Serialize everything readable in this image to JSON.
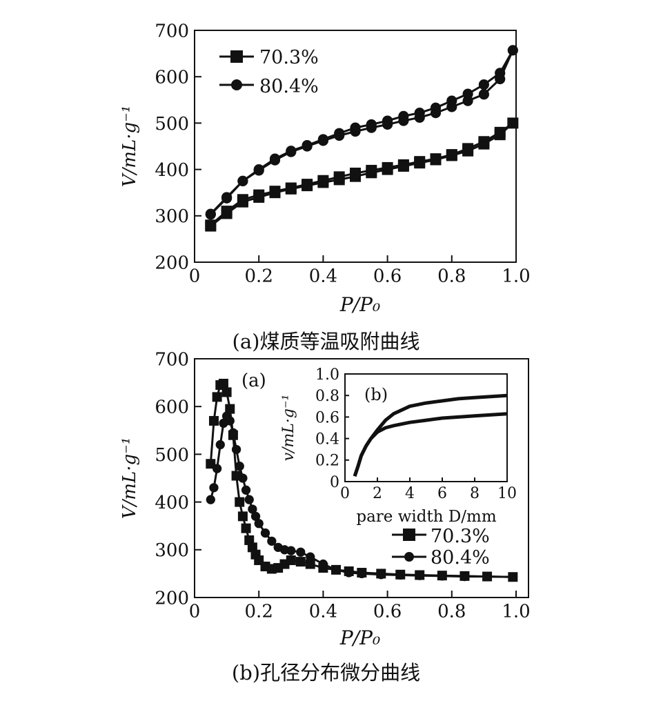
{
  "figure": {
    "caption_a": "(a)煤质等温吸附曲线",
    "caption_b": "(b)孔径分布微分曲线"
  },
  "chart_data": [
    {
      "id": "a",
      "type": "line",
      "ylabel": "V/mL·g⁻¹",
      "xlabel": "P/P₀",
      "xlim": [
        0,
        1.0
      ],
      "ylim": [
        200,
        700
      ],
      "xticks": [
        "0",
        "0.2",
        "0.4",
        "0.6",
        "0.8",
        "1.0"
      ],
      "yticks": [
        "200",
        "300",
        "400",
        "500",
        "600",
        "700"
      ],
      "legend_position": "top-left",
      "grid": false,
      "series": [
        {
          "name": "70.3%",
          "marker": "square",
          "color": "#111111",
          "x": [
            0.05,
            0.1,
            0.15,
            0.2,
            0.25,
            0.3,
            0.35,
            0.4,
            0.45,
            0.5,
            0.55,
            0.6,
            0.65,
            0.7,
            0.75,
            0.8,
            0.85,
            0.9,
            0.95,
            0.99,
            0.95,
            0.9,
            0.85,
            0.8,
            0.75,
            0.7,
            0.65,
            0.6,
            0.55,
            0.5,
            0.45,
            0.4,
            0.35,
            0.3,
            0.25,
            0.2,
            0.15,
            0.1,
            0.05
          ],
          "y": [
            278,
            305,
            330,
            340,
            350,
            358,
            365,
            372,
            378,
            385,
            393,
            400,
            407,
            414,
            421,
            430,
            440,
            455,
            475,
            500,
            480,
            460,
            445,
            432,
            423,
            417,
            410,
            404,
            398,
            392,
            384,
            376,
            368,
            360,
            353,
            345,
            335,
            310,
            280
          ]
        },
        {
          "name": "80.4%",
          "marker": "circle",
          "color": "#111111",
          "x": [
            0.05,
            0.1,
            0.15,
            0.2,
            0.25,
            0.3,
            0.35,
            0.4,
            0.45,
            0.5,
            0.55,
            0.6,
            0.65,
            0.7,
            0.75,
            0.8,
            0.85,
            0.9,
            0.95,
            0.99,
            0.95,
            0.9,
            0.85,
            0.8,
            0.75,
            0.7,
            0.65,
            0.6,
            0.55,
            0.5,
            0.45,
            0.4,
            0.35,
            0.3,
            0.25,
            0.2,
            0.15,
            0.1,
            0.05
          ],
          "y": [
            303,
            338,
            375,
            398,
            420,
            438,
            450,
            462,
            473,
            482,
            490,
            497,
            505,
            512,
            522,
            535,
            548,
            562,
            595,
            657,
            608,
            583,
            563,
            548,
            533,
            522,
            515,
            505,
            497,
            490,
            478,
            465,
            452,
            440,
            423,
            400,
            375,
            340,
            304
          ]
        }
      ]
    },
    {
      "id": "b",
      "type": "line",
      "panel_label": "(a)",
      "ylabel": "V/mL·g⁻¹",
      "xlabel": "P/P₀",
      "xlim": [
        0,
        1.0
      ],
      "ylim": [
        200,
        700
      ],
      "xticks": [
        "0",
        "0.2",
        "0.4",
        "0.6",
        "0.8",
        "1.0"
      ],
      "yticks": [
        "200",
        "300",
        "400",
        "500",
        "600",
        "700"
      ],
      "legend_position": "bottom-right",
      "grid": false,
      "series": [
        {
          "name": "70.3%",
          "marker": "square",
          "color": "#111111",
          "x": [
            0.05,
            0.06,
            0.07,
            0.08,
            0.09,
            0.1,
            0.11,
            0.12,
            0.13,
            0.14,
            0.15,
            0.16,
            0.17,
            0.18,
            0.19,
            0.2,
            0.22,
            0.24,
            0.26,
            0.28,
            0.3,
            0.33,
            0.36,
            0.4,
            0.44,
            0.48,
            0.52,
            0.58,
            0.64,
            0.7,
            0.77,
            0.84,
            0.91,
            0.99
          ],
          "y": [
            480,
            570,
            620,
            645,
            648,
            630,
            595,
            540,
            455,
            400,
            370,
            345,
            320,
            305,
            290,
            278,
            265,
            260,
            262,
            270,
            278,
            275,
            270,
            262,
            258,
            255,
            252,
            250,
            248,
            247,
            246,
            245,
            244,
            243
          ]
        },
        {
          "name": "80.4%",
          "marker": "circle",
          "color": "#111111",
          "x": [
            0.05,
            0.06,
            0.07,
            0.08,
            0.09,
            0.1,
            0.11,
            0.12,
            0.13,
            0.14,
            0.15,
            0.16,
            0.17,
            0.18,
            0.19,
            0.2,
            0.22,
            0.24,
            0.26,
            0.28,
            0.3,
            0.33,
            0.36,
            0.4,
            0.44,
            0.48,
            0.52,
            0.58,
            0.64,
            0.7,
            0.77,
            0.84,
            0.91,
            0.99
          ],
          "y": [
            405,
            430,
            470,
            520,
            565,
            580,
            570,
            545,
            510,
            475,
            450,
            425,
            405,
            385,
            370,
            355,
            335,
            318,
            305,
            300,
            298,
            295,
            285,
            270,
            258,
            252,
            250,
            248,
            247,
            246,
            245,
            244,
            244,
            243
          ]
        }
      ],
      "inset": {
        "label": "(b)",
        "ylabel": "v/mL·g⁻¹",
        "xlabel": "pare width D/mm",
        "xlim": [
          0,
          10
        ],
        "ylim": [
          0,
          1.0
        ],
        "xticks": [
          "0",
          "2",
          "4",
          "6",
          "8",
          "10"
        ],
        "yticks": [
          "0",
          "0.2",
          "0.4",
          "0.6",
          "0.8",
          "1.0"
        ],
        "series": [
          {
            "name": "70.3%",
            "x": [
              0.6,
              0.8,
              1.0,
              1.3,
              1.6,
              2.0,
              2.5,
              3,
              4,
              5,
              6,
              7,
              8,
              9,
              10
            ],
            "y": [
              0.05,
              0.14,
              0.24,
              0.33,
              0.4,
              0.46,
              0.5,
              0.52,
              0.55,
              0.57,
              0.59,
              0.6,
              0.61,
              0.62,
              0.63
            ]
          },
          {
            "name": "80.4%",
            "x": [
              0.6,
              0.8,
              1.0,
              1.3,
              1.6,
              2.0,
              2.5,
              3,
              4,
              5,
              6,
              7,
              8,
              9,
              10
            ],
            "y": [
              0.05,
              0.14,
              0.24,
              0.33,
              0.4,
              0.48,
              0.57,
              0.63,
              0.7,
              0.73,
              0.75,
              0.77,
              0.78,
              0.79,
              0.8
            ]
          }
        ]
      }
    }
  ]
}
